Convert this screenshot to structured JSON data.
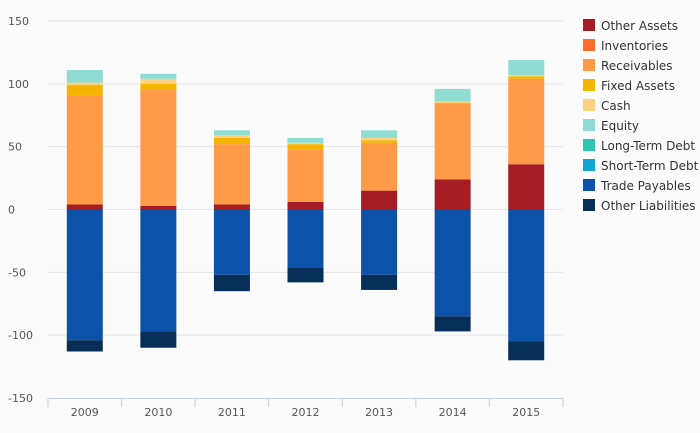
{
  "chart_data": {
    "type": "bar",
    "stacked": true,
    "categories": [
      "2009",
      "2010",
      "2011",
      "2012",
      "2013",
      "2014",
      "2015"
    ],
    "ylim": [
      -150,
      150
    ],
    "yticks": [
      150,
      100,
      50,
      0,
      -50,
      -100,
      -150
    ],
    "grid": true,
    "legend_position": "right",
    "series": [
      {
        "name": "Other Assets",
        "color": "#a51c24",
        "values": [
          4,
          3,
          4,
          6,
          15,
          24,
          36
        ]
      },
      {
        "name": "Inventories",
        "color": "#ff6b2b",
        "values": [
          0,
          0,
          0,
          0,
          0,
          0,
          0
        ]
      },
      {
        "name": "Receivables",
        "color": "#ff9a48",
        "values": [
          87,
          92,
          48,
          42,
          38,
          60,
          68
        ]
      },
      {
        "name": "Fixed Assets",
        "color": "#f4b400",
        "values": [
          8,
          5,
          5,
          4,
          2,
          1,
          2
        ]
      },
      {
        "name": "Cash",
        "color": "#ffd27f",
        "values": [
          2,
          4,
          2,
          1,
          2,
          1,
          1
        ]
      },
      {
        "name": "Equity",
        "color": "#8edcd2",
        "values": [
          10,
          4,
          4,
          4,
          6,
          10,
          12
        ]
      },
      {
        "name": "Long-Term Debt",
        "color": "#2ec4b0",
        "values": [
          0,
          0,
          0,
          0,
          0,
          0,
          0
        ]
      },
      {
        "name": "Short-Term Debt",
        "color": "#11a6d4",
        "values": [
          0,
          0,
          0,
          0,
          0,
          0,
          0
        ]
      },
      {
        "name": "Trade Payables",
        "color": "#0b52a8",
        "values": [
          -104,
          -97,
          -52,
          -46,
          -52,
          -85,
          -105
        ]
      },
      {
        "name": "Other Liabilities",
        "color": "#062e57",
        "values": [
          -9,
          -13,
          -13,
          -12,
          -12,
          -12,
          -15
        ]
      }
    ]
  }
}
